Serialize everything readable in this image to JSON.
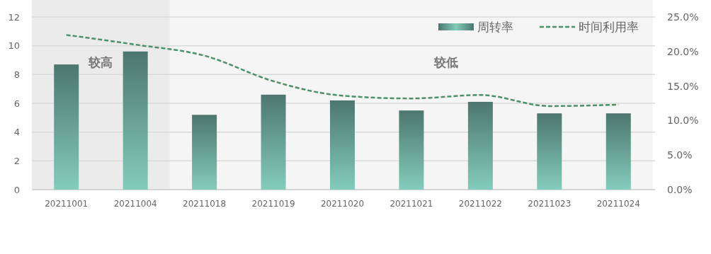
{
  "chart_data": {
    "type": "bar",
    "categories": [
      "20211001",
      "20211004",
      "20211018",
      "20211019",
      "20211020",
      "20211021",
      "20211022",
      "20211023",
      "20211024"
    ],
    "series": [
      {
        "name": "周转率",
        "color": "#5f9488",
        "values": [
          8.7,
          9.6,
          5.2,
          6.6,
          6.2,
          5.5,
          6.1,
          5.3,
          5.3
        ]
      },
      {
        "name": "时间利用率",
        "type": "line",
        "axis": "y2",
        "color": "#4e8f6c",
        "line_style": "dashed",
        "values": [
          22.4,
          21.0,
          19.4,
          15.7,
          13.6,
          13.2,
          13.7,
          12.1,
          12.3
        ]
      }
    ],
    "ylim": [
      0,
      12
    ],
    "yticks": [
      0,
      2,
      4,
      6,
      8,
      10,
      12
    ],
    "y2lim": [
      0,
      25
    ],
    "y2ticks": [
      {
        "value": 0,
        "label": "0.0%"
      },
      {
        "value": 5,
        "label": "5.0%"
      },
      {
        "value": 10,
        "label": "10.0%"
      },
      {
        "value": 15,
        "label": "15.0%"
      },
      {
        "value": 20,
        "label": "20.0%"
      },
      {
        "value": 25,
        "label": "25.0%"
      }
    ],
    "bands": [
      {
        "axis": "x",
        "from": "20211001",
        "to": "20211004",
        "label": "较高",
        "color": "#ebebeb"
      },
      {
        "axis": "x",
        "from": "20211018",
        "to": "20211024",
        "label": "较低",
        "color": "#f5f5f5"
      }
    ],
    "grid": "y",
    "legend": "top right"
  }
}
